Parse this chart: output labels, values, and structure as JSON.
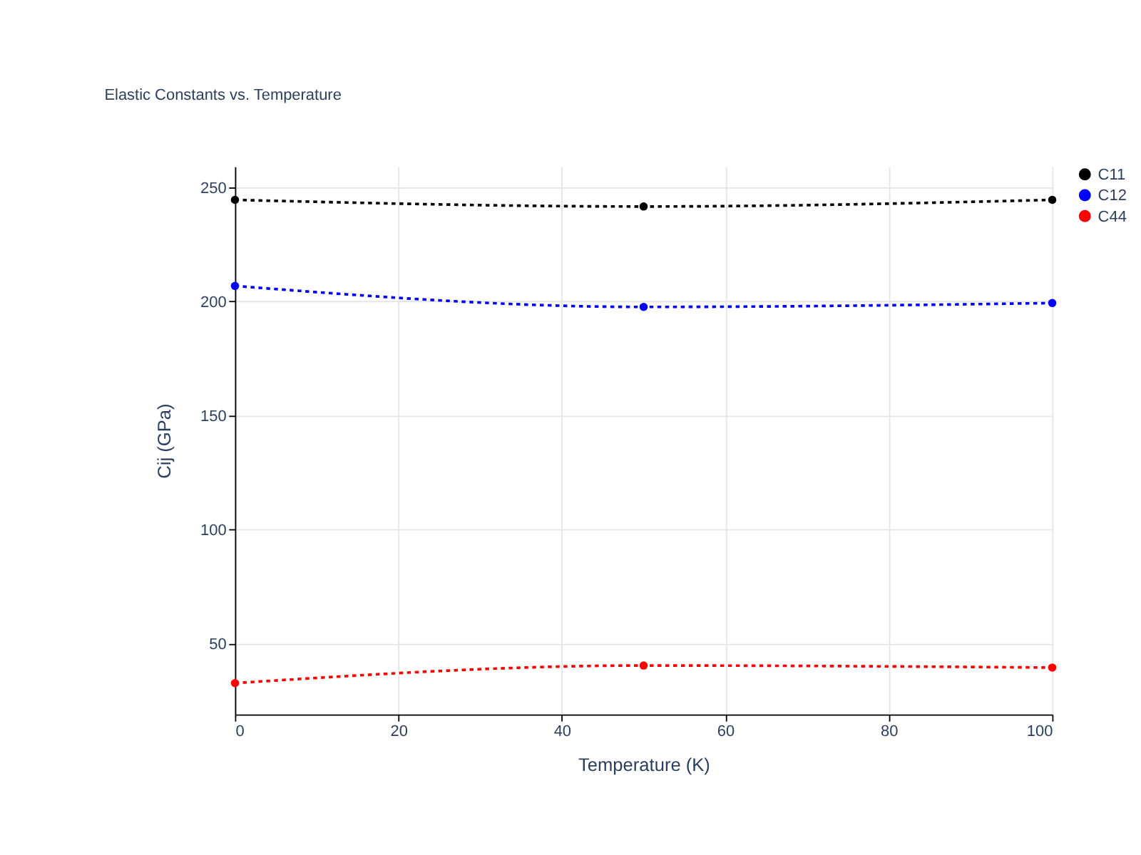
{
  "chart_data": {
    "type": "line",
    "title": "Elastic Constants vs. Temperature",
    "xlabel": "Temperature (K)",
    "ylabel": "Cij (GPa)",
    "x": [
      0,
      50,
      100
    ],
    "series": [
      {
        "name": "C11",
        "color": "#000000",
        "values": [
          244.3,
          241.4,
          244.3
        ]
      },
      {
        "name": "C12",
        "color": "#0000ff",
        "values": [
          206.6,
          197.4,
          199.1
        ]
      },
      {
        "name": "C44",
        "color": "#ff0000",
        "values": [
          32.6,
          40.3,
          39.4
        ]
      }
    ],
    "xlim": [
      0,
      100
    ],
    "xticks": [
      0,
      20,
      40,
      60,
      80,
      100
    ],
    "ylim": [
      18.9,
      258.9
    ],
    "yticks": [
      50,
      100,
      150,
      200,
      250
    ],
    "grid": true,
    "legend": "top right",
    "marker": "circle",
    "line_style": "dotted"
  }
}
